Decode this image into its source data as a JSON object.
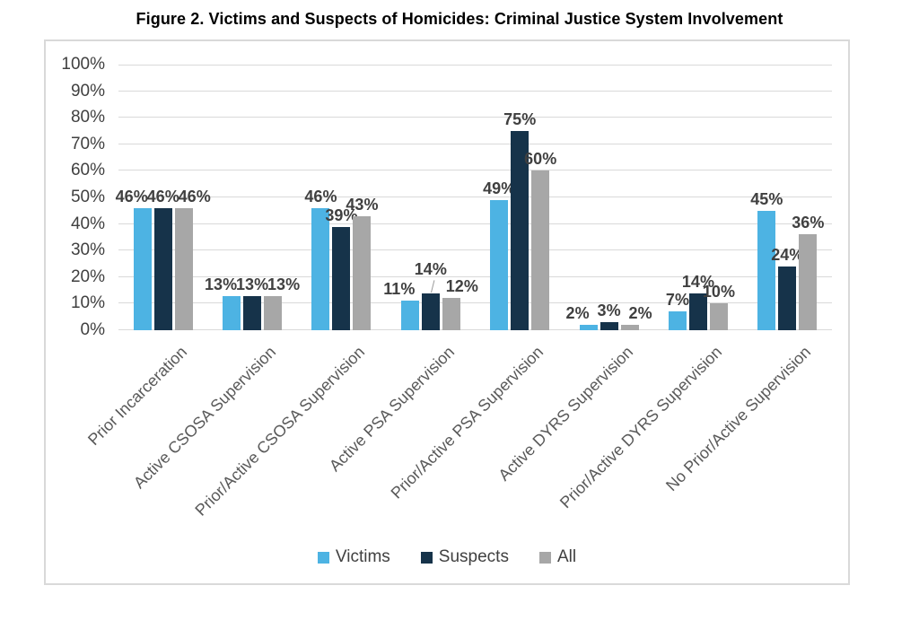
{
  "chart_data": {
    "type": "bar",
    "title": "Figure 2. Victims and Suspects of Homicides: Criminal Justice System Involvement",
    "categories": [
      "Prior Incarceration",
      "Active CSOSA Supervision",
      "Prior/Active CSOSA Supervision",
      "Active PSA Supervision",
      "Prior/Active PSA Supervision",
      "Active DYRS Supervision",
      "Prior/Active DYRS Supervision",
      "No Prior/Active Supervision"
    ],
    "series": [
      {
        "name": "Victims",
        "color": "#4DB3E3",
        "values": [
          46,
          13,
          46,
          11,
          49,
          2,
          7,
          45
        ],
        "labels": [
          "46%",
          "13%",
          "46%",
          "11%",
          "49%",
          "2%",
          "7%",
          "45%"
        ]
      },
      {
        "name": "Suspects",
        "color": "#16334A",
        "values": [
          46,
          13,
          39,
          14,
          75,
          3,
          14,
          24
        ],
        "labels": [
          "46%",
          "13%",
          "39%",
          "14%",
          "75%",
          "3%",
          "14%",
          "24%"
        ]
      },
      {
        "name": "All",
        "color": "#A7A7A7",
        "values": [
          46,
          13,
          43,
          12,
          60,
          2,
          10,
          36
        ],
        "labels": [
          "46%",
          "13%",
          "43%",
          "12%",
          "60%",
          "2%",
          "10%",
          "36%"
        ]
      }
    ],
    "y_axis": {
      "min": 0,
      "max": 100,
      "step": 10,
      "tick_labels": [
        "0%",
        "10%",
        "20%",
        "30%",
        "40%",
        "50%",
        "60%",
        "70%",
        "80%",
        "90%",
        "100%"
      ]
    },
    "legend": {
      "position": "bottom",
      "entries": [
        "Victims",
        "Suspects",
        "All"
      ]
    },
    "grid": true,
    "annotations": {
      "leader_line": {
        "category_index": 3,
        "series_index": 1
      }
    },
    "colors": {
      "gridline": "#D9D9D9",
      "frame_border": "#D9D9D9",
      "axis_text": "#404040",
      "category_text": "#595959"
    }
  }
}
